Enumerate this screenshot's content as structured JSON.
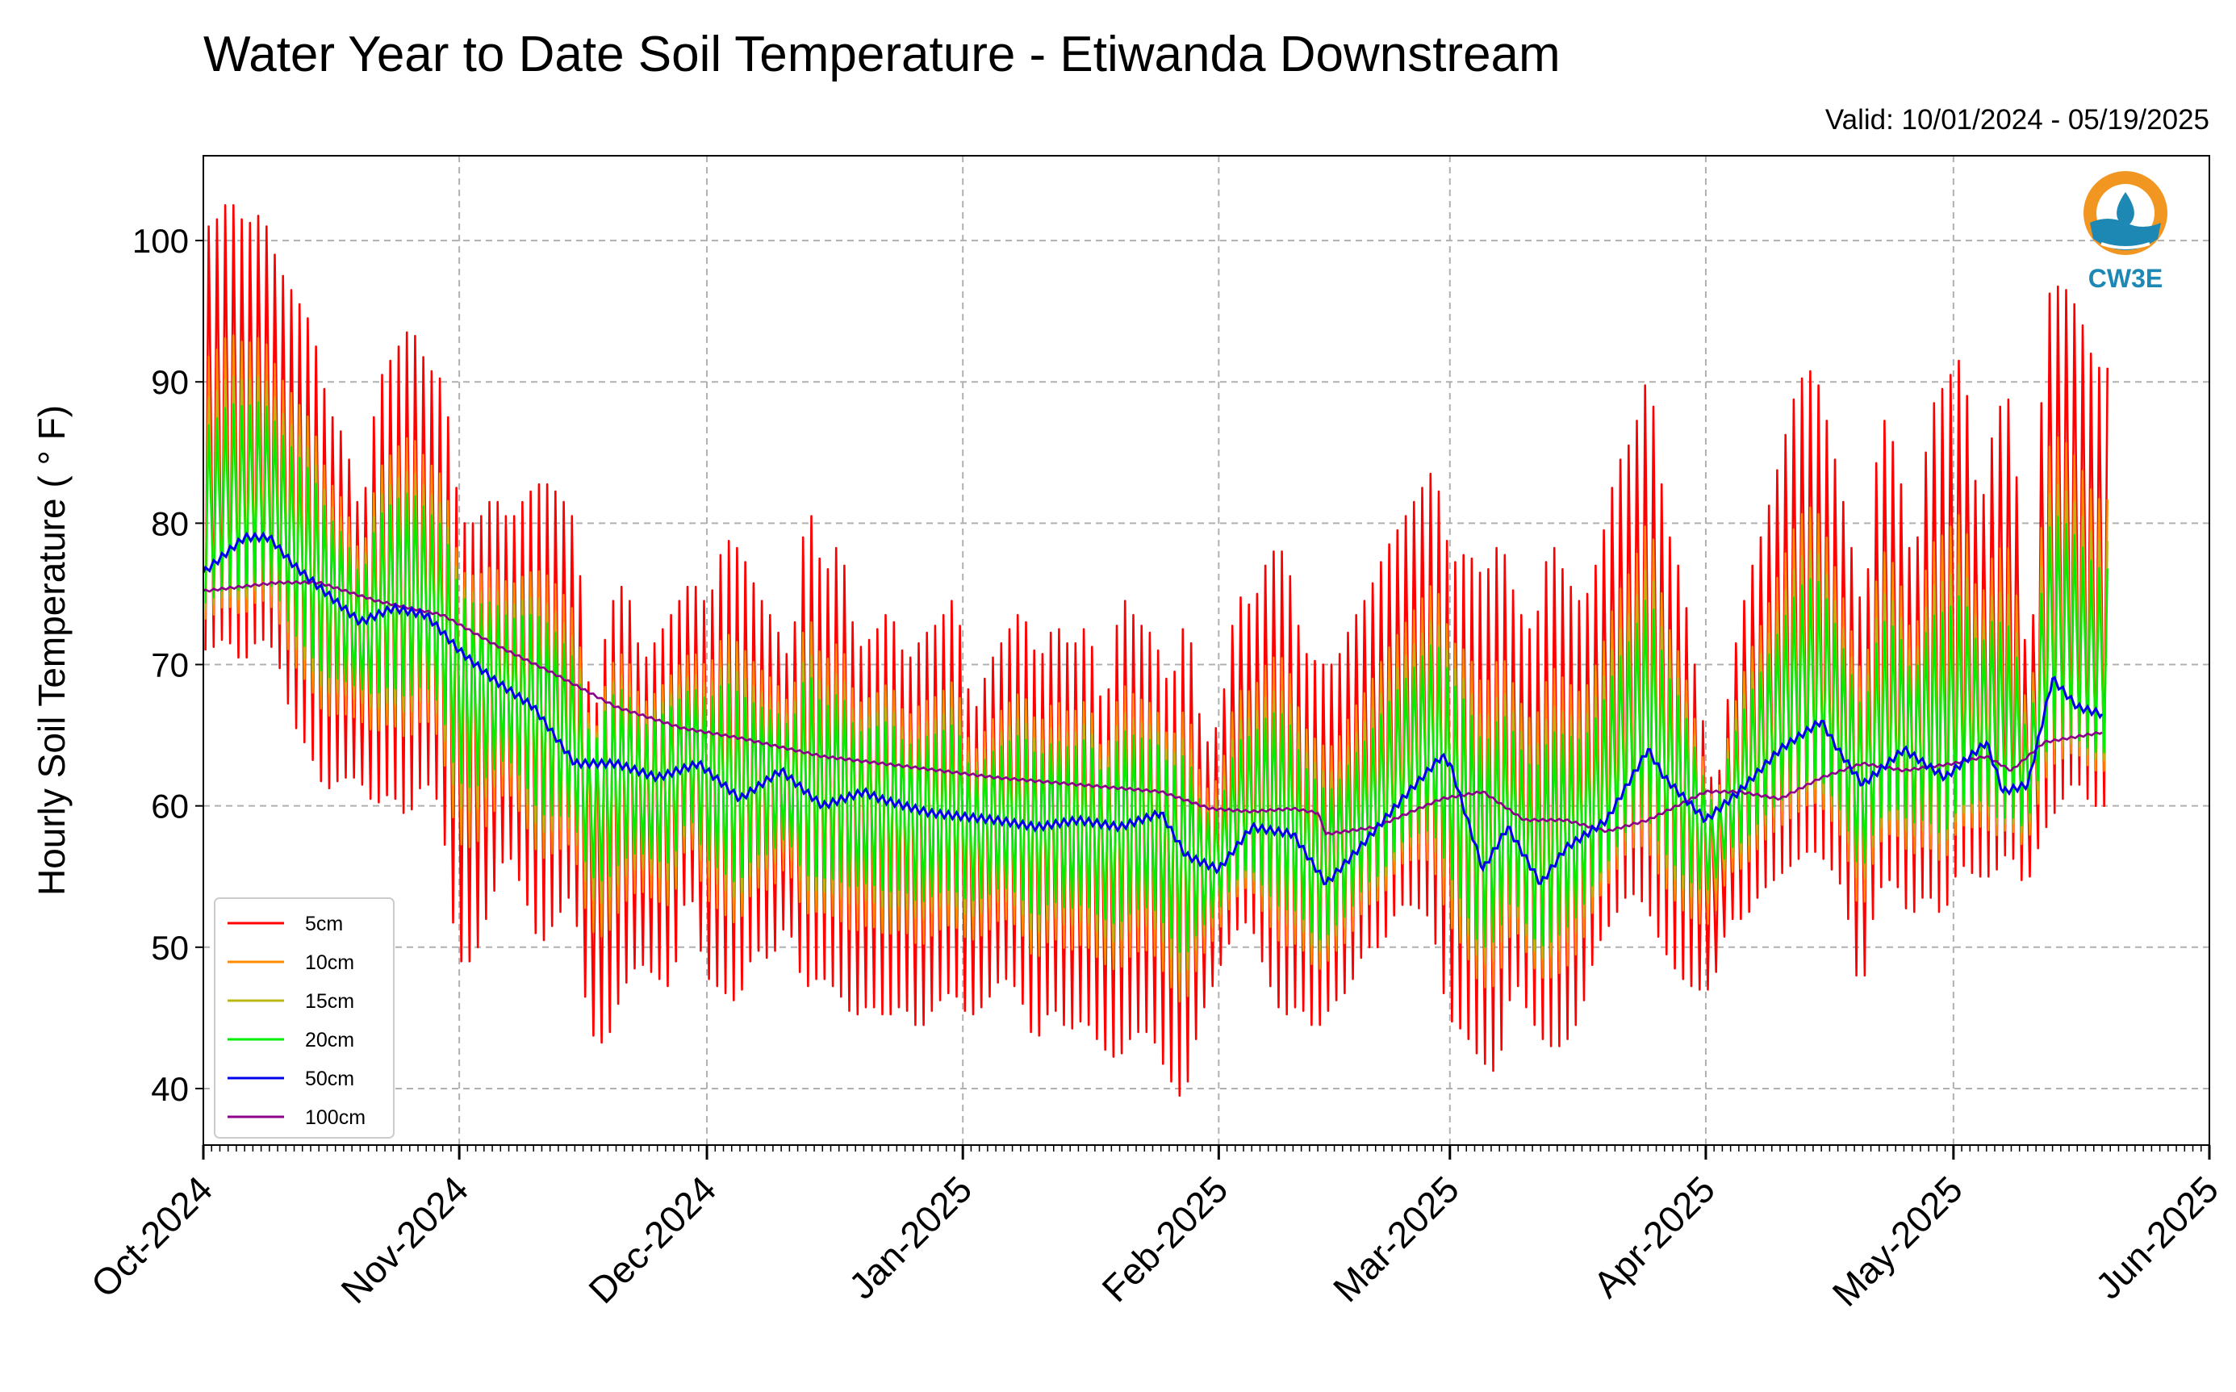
{
  "chart_data": {
    "type": "line",
    "title": "Water Year to Date Soil Temperature - Etiwanda Downstream",
    "subtitle": "Valid: 10/01/2024 - 05/19/2025",
    "ylabel": "Hourly Soil Temperature ( ° F)",
    "xlabel": "",
    "ylim": [
      36,
      106
    ],
    "xlim": [
      "2024-10-01",
      "2025-06-01"
    ],
    "yticks": [
      40,
      50,
      60,
      70,
      80,
      90,
      100
    ],
    "xticks": [
      {
        "date": "2024-10-01",
        "label": "Oct-2024"
      },
      {
        "date": "2024-11-01",
        "label": "Nov-2024"
      },
      {
        "date": "2024-12-01",
        "label": "Dec-2024"
      },
      {
        "date": "2025-01-01",
        "label": "Jan-2025"
      },
      {
        "date": "2025-02-01",
        "label": "Feb-2025"
      },
      {
        "date": "2025-03-01",
        "label": "Mar-2025"
      },
      {
        "date": "2025-04-01",
        "label": "Apr-2025"
      },
      {
        "date": "2025-05-01",
        "label": "May-2025"
      },
      {
        "date": "2025-06-01",
        "label": "Jun-2025"
      }
    ],
    "grid": true,
    "legend_position": "lower-left",
    "daily_extremes_5cm": {
      "x": [
        "2024-10-02",
        "2024-10-04",
        "2024-10-06",
        "2024-10-08",
        "2024-10-10",
        "2024-10-12",
        "2024-10-14",
        "2024-10-16",
        "2024-10-18",
        "2024-10-20",
        "2024-10-22",
        "2024-10-24",
        "2024-10-26",
        "2024-10-28",
        "2024-10-30",
        "2024-11-01",
        "2024-11-03",
        "2024-11-05",
        "2024-11-07",
        "2024-11-09",
        "2024-11-11",
        "2024-11-13",
        "2024-11-15",
        "2024-11-17",
        "2024-11-19",
        "2024-11-21",
        "2024-11-23",
        "2024-11-25",
        "2024-11-27",
        "2024-11-29",
        "2024-12-01",
        "2024-12-03",
        "2024-12-05",
        "2024-12-07",
        "2024-12-09",
        "2024-12-11",
        "2024-12-13",
        "2024-12-15",
        "2024-12-17",
        "2024-12-19",
        "2024-12-21",
        "2024-12-23",
        "2024-12-25",
        "2024-12-27",
        "2024-12-29",
        "2024-12-31",
        "2025-01-02",
        "2025-01-04",
        "2025-01-06",
        "2025-01-08",
        "2025-01-10",
        "2025-01-12",
        "2025-01-14",
        "2025-01-16",
        "2025-01-18",
        "2025-01-20",
        "2025-01-22",
        "2025-01-24",
        "2025-01-26",
        "2025-01-28",
        "2025-01-30",
        "2025-02-01",
        "2025-02-03",
        "2025-02-05",
        "2025-02-07",
        "2025-02-09",
        "2025-02-11",
        "2025-02-13",
        "2025-02-15",
        "2025-02-17",
        "2025-02-19",
        "2025-02-21",
        "2025-02-23",
        "2025-02-25",
        "2025-02-27",
        "2025-03-01",
        "2025-03-03",
        "2025-03-05",
        "2025-03-07",
        "2025-03-09",
        "2025-03-11",
        "2025-03-13",
        "2025-03-15",
        "2025-03-17",
        "2025-03-19",
        "2025-03-21",
        "2025-03-23",
        "2025-03-25",
        "2025-03-27",
        "2025-03-29",
        "2025-03-31",
        "2025-04-02",
        "2025-04-04",
        "2025-04-06",
        "2025-04-08",
        "2025-04-10",
        "2025-04-12",
        "2025-04-14",
        "2025-04-16",
        "2025-04-18",
        "2025-04-20",
        "2025-04-22",
        "2025-04-24",
        "2025-04-26",
        "2025-04-28",
        "2025-04-30",
        "2025-05-02",
        "2025-05-04",
        "2025-05-06",
        "2025-05-08",
        "2025-05-10",
        "2025-05-12",
        "2025-05-14",
        "2025-05-16",
        "2025-05-18"
      ],
      "max": [
        101,
        103,
        101,
        102,
        98,
        96,
        94,
        88,
        86,
        80,
        90,
        92,
        94,
        91,
        90,
        80,
        80,
        82,
        80,
        82,
        83,
        82,
        80,
        65,
        74,
        76,
        70,
        72,
        74,
        76,
        74,
        79,
        78,
        75,
        73,
        70,
        82,
        76,
        79,
        71,
        72,
        74,
        70,
        72,
        73,
        75,
        66,
        70,
        72,
        74,
        70,
        73,
        71,
        73,
        66,
        75,
        73,
        72,
        68,
        74,
        64,
        66,
        75,
        74,
        78,
        78,
        71,
        70,
        70,
        73,
        75,
        78,
        80,
        82,
        84,
        77,
        78,
        76,
        79,
        74,
        72,
        79,
        76,
        74,
        78,
        84,
        86,
        91,
        80,
        76,
        68,
        60,
        70,
        76,
        80,
        85,
        90,
        91,
        86,
        80,
        73,
        88,
        85,
        76,
        88,
        90,
        92,
        80,
        88,
        89,
        66,
        96,
        97,
        95,
        91
      ],
      "min": [
        71,
        72,
        70,
        72,
        71,
        66,
        64,
        61,
        62,
        62,
        60,
        61,
        59,
        62,
        60,
        49,
        49,
        53,
        57,
        54,
        50,
        52,
        54,
        44,
        43,
        47,
        49,
        48,
        47,
        55,
        48,
        47,
        46,
        50,
        49,
        52,
        47,
        48,
        47,
        45,
        46,
        45,
        46,
        44,
        46,
        47,
        45,
        46,
        48,
        47,
        43,
        46,
        44,
        45,
        43,
        42,
        44,
        44,
        41,
        39,
        45,
        48,
        51,
        52,
        48,
        45,
        46,
        44,
        46,
        47,
        50,
        50,
        53,
        53,
        52,
        45,
        44,
        42,
        41,
        48,
        45,
        43,
        43,
        45,
        50,
        52,
        54,
        53,
        50,
        48,
        47,
        47,
        52,
        52,
        54,
        55,
        56,
        57,
        56,
        54,
        46,
        54,
        55,
        52,
        54,
        52,
        56,
        55,
        55,
        57,
        54,
        58,
        60,
        62,
        60
      ]
    },
    "series": [
      {
        "name": "5cm",
        "color": "#ff0000"
      },
      {
        "name": "10cm",
        "color": "#ff8c00"
      },
      {
        "name": "15cm",
        "color": "#b8b814"
      },
      {
        "name": "20cm",
        "color": "#00ee00"
      },
      {
        "name": "50cm",
        "color": "#0000ee",
        "x": [
          "2024-10-01",
          "2024-10-06",
          "2024-10-09",
          "2024-10-12",
          "2024-10-16",
          "2024-10-20",
          "2024-10-24",
          "2024-10-28",
          "2024-11-01",
          "2024-11-05",
          "2024-11-10",
          "2024-11-15",
          "2024-11-17",
          "2024-11-20",
          "2024-11-25",
          "2024-11-30",
          "2024-12-05",
          "2024-12-10",
          "2024-12-15",
          "2024-12-20",
          "2024-12-22",
          "2024-12-28",
          "2025-01-05",
          "2025-01-10",
          "2025-01-15",
          "2025-01-20",
          "2025-01-25",
          "2025-01-28",
          "2025-02-01",
          "2025-02-05",
          "2025-02-10",
          "2025-02-14",
          "2025-02-18",
          "2025-02-24",
          "2025-02-28",
          "2025-03-01",
          "2025-03-05",
          "2025-03-08",
          "2025-03-12",
          "2025-03-15",
          "2025-03-20",
          "2025-03-25",
          "2025-03-27",
          "2025-04-01",
          "2025-04-05",
          "2025-04-10",
          "2025-04-15",
          "2025-04-17",
          "2025-04-20",
          "2025-04-25",
          "2025-04-30",
          "2025-05-02",
          "2025-05-05",
          "2025-05-07",
          "2025-05-10",
          "2025-05-13",
          "2025-05-16",
          "2025-05-19"
        ],
        "y": [
          76.5,
          79,
          79,
          77,
          75,
          73,
          74,
          73.5,
          71,
          69,
          67,
          63,
          63,
          63,
          62,
          63,
          60.5,
          62.5,
          60,
          61,
          60.5,
          59.5,
          59,
          58.5,
          59,
          58.5,
          59.5,
          56.5,
          55.5,
          58.5,
          58,
          54.5,
          57,
          61,
          63.5,
          63,
          55.5,
          58.5,
          54.5,
          57,
          59,
          64,
          62,
          59,
          61,
          64,
          66,
          64,
          61.5,
          64,
          62,
          63,
          64.5,
          61,
          61.5,
          69,
          67,
          66.5
        ]
      },
      {
        "name": "100cm",
        "color": "#8b008b",
        "x": [
          "2024-10-01",
          "2024-10-10",
          "2024-10-15",
          "2024-10-22",
          "2024-10-30",
          "2024-11-05",
          "2024-11-12",
          "2024-11-20",
          "2024-11-28",
          "2024-12-05",
          "2024-12-15",
          "2024-12-25",
          "2025-01-05",
          "2025-01-15",
          "2025-01-25",
          "2025-01-31",
          "2025-02-05",
          "2025-02-10",
          "2025-02-13",
          "2025-02-14",
          "2025-02-20",
          "2025-02-28",
          "2025-03-05",
          "2025-03-10",
          "2025-03-15",
          "2025-03-20",
          "2025-03-25",
          "2025-04-01",
          "2025-04-05",
          "2025-04-10",
          "2025-04-15",
          "2025-04-20",
          "2025-04-25",
          "2025-05-01",
          "2025-05-05",
          "2025-05-08",
          "2025-05-12",
          "2025-05-19"
        ],
        "y": [
          75.2,
          75.8,
          75.8,
          74.5,
          73.5,
          71.5,
          69.5,
          67,
          65.5,
          64.8,
          63.5,
          62.8,
          62,
          61.5,
          61,
          59.8,
          59.6,
          59.8,
          59.5,
          58,
          58.5,
          60.5,
          61,
          59,
          59,
          58.2,
          59,
          61,
          61,
          60.5,
          62,
          63,
          62.5,
          63,
          63.5,
          62.5,
          64.5,
          65.2
        ]
      }
    ]
  },
  "logo": {
    "text": "CW3E",
    "icon": "water-drop-sun-icon",
    "colors": {
      "sun": "#f29622",
      "water": "#1e88b4"
    }
  }
}
